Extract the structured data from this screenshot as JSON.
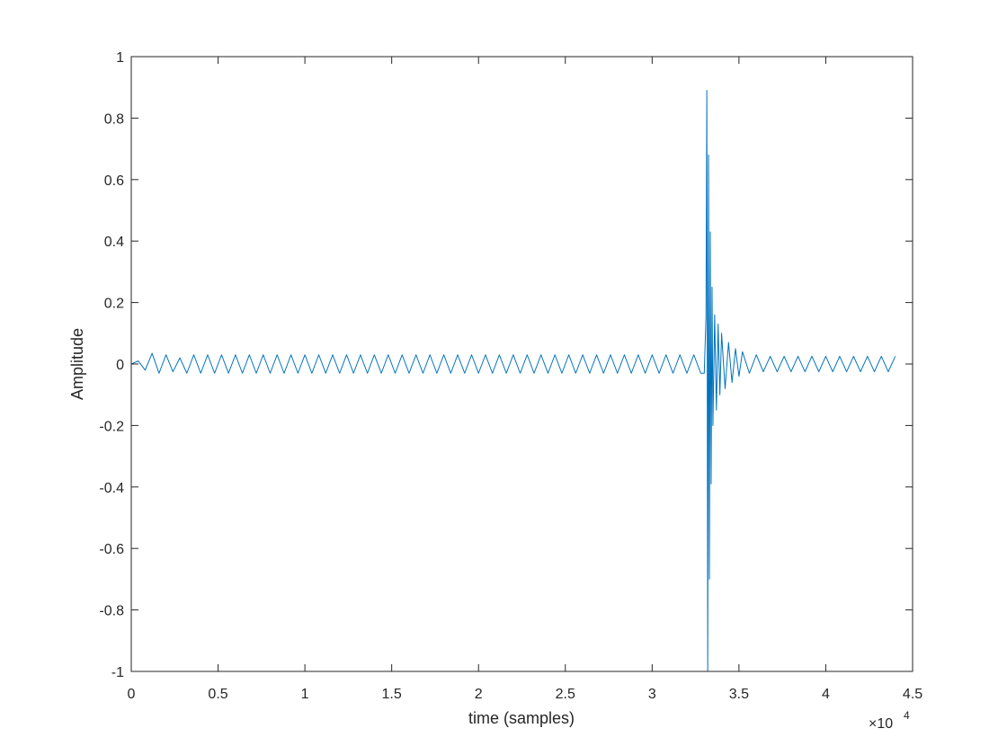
{
  "chart_data": {
    "type": "line",
    "xlabel": "time (samples)",
    "ylabel": "Amplitude",
    "x_exponent": {
      "base": "×10",
      "power": "4"
    },
    "color": "#0072bd",
    "xlim": [
      0,
      4.5
    ],
    "ylim": [
      -1,
      1
    ],
    "xticks": [
      0,
      0.5,
      1,
      1.5,
      2,
      2.5,
      3,
      3.5,
      4,
      4.5
    ],
    "yticks": [
      -1,
      -0.8,
      -0.6,
      -0.4,
      -0.2,
      0,
      0.2,
      0.4,
      0.6,
      0.8,
      1
    ],
    "x": [
      0,
      0.04,
      0.08,
      0.12,
      0.16,
      0.2,
      0.24,
      0.28,
      0.32,
      0.36,
      0.4,
      0.44,
      0.48,
      0.52,
      0.56,
      0.6,
      0.64,
      0.68,
      0.72,
      0.76,
      0.8,
      0.84,
      0.88,
      0.92,
      0.96,
      1,
      1.04,
      1.08,
      1.12,
      1.16,
      1.2,
      1.24,
      1.28,
      1.32,
      1.36,
      1.4,
      1.44,
      1.48,
      1.52,
      1.56,
      1.6,
      1.64,
      1.68,
      1.72,
      1.76,
      1.8,
      1.84,
      1.88,
      1.92,
      1.96,
      2,
      2.04,
      2.08,
      2.12,
      2.16,
      2.2,
      2.24,
      2.28,
      2.32,
      2.36,
      2.4,
      2.44,
      2.48,
      2.52,
      2.56,
      2.6,
      2.64,
      2.68,
      2.72,
      2.76,
      2.8,
      2.84,
      2.88,
      2.92,
      2.96,
      3,
      3.04,
      3.08,
      3.12,
      3.16,
      3.2,
      3.24,
      3.28,
      3.3,
      3.31,
      3.315,
      3.32,
      3.325,
      3.33,
      3.335,
      3.34,
      3.345,
      3.35,
      3.36,
      3.37,
      3.38,
      3.39,
      3.4,
      3.42,
      3.44,
      3.46,
      3.48,
      3.5,
      3.52,
      3.56,
      3.6,
      3.64,
      3.68,
      3.72,
      3.76,
      3.8,
      3.84,
      3.88,
      3.92,
      3.96,
      4,
      4.04,
      4.08,
      4.12,
      4.16,
      4.2,
      4.24,
      4.28,
      4.32,
      4.36,
      4.4
    ],
    "values": [
      0,
      0.01,
      -0.02,
      0.035,
      -0.03,
      0.03,
      -0.025,
      0.02,
      -0.03,
      0.03,
      -0.03,
      0.03,
      -0.03,
      0.03,
      -0.03,
      0.03,
      -0.03,
      0.03,
      -0.03,
      0.03,
      -0.03,
      0.03,
      -0.03,
      0.03,
      -0.03,
      0.03,
      -0.03,
      0.03,
      -0.03,
      0.03,
      -0.03,
      0.03,
      -0.03,
      0.03,
      -0.03,
      0.03,
      -0.03,
      0.03,
      -0.03,
      0.03,
      -0.03,
      0.03,
      -0.03,
      0.03,
      -0.03,
      0.03,
      -0.03,
      0.03,
      -0.03,
      0.03,
      -0.03,
      0.03,
      -0.03,
      0.03,
      -0.03,
      0.03,
      -0.03,
      0.03,
      -0.03,
      0.03,
      -0.03,
      0.03,
      -0.03,
      0.03,
      -0.03,
      0.03,
      -0.03,
      0.03,
      -0.03,
      0.03,
      -0.03,
      0.03,
      -0.03,
      0.03,
      -0.03,
      0.03,
      -0.03,
      0.03,
      -0.03,
      0.03,
      -0.03,
      0.03,
      -0.03,
      -0.03,
      0.15,
      0.89,
      -1,
      0.68,
      -0.7,
      0.43,
      -0.39,
      0.25,
      -0.2,
      0.16,
      -0.15,
      0.13,
      -0.1,
      0.1,
      -0.08,
      0.07,
      -0.06,
      0.05,
      -0.04,
      0.04,
      -0.03,
      0.03,
      -0.025,
      0.025,
      -0.025,
      0.025,
      -0.025,
      0.025,
      -0.025,
      0.025,
      -0.025,
      0.025,
      -0.025,
      0.025,
      -0.025,
      0.025,
      -0.025,
      0.025,
      -0.025,
      0.025,
      -0.025,
      0.025
    ]
  }
}
